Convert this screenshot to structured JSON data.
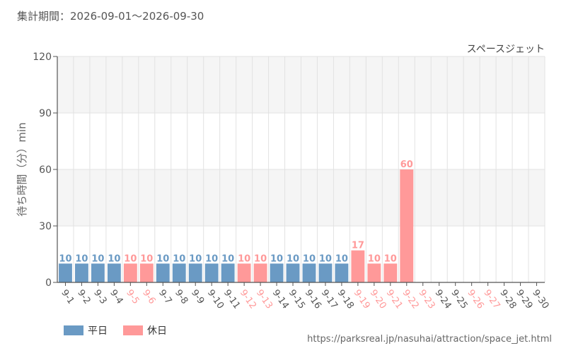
{
  "header": {
    "period": "集計期間：2026-09-01〜2026-09-30"
  },
  "legend": {
    "weekday": "平日",
    "holiday": "休日"
  },
  "source_url": "https://parksreal.jp/nasuhai/attraction/space_jet.html",
  "colors": {
    "weekday": "#6a9ac4",
    "holiday": "#ff9999",
    "band": "#f5f5f5",
    "grid": "#e2e2e2",
    "axis": "#555555",
    "tick_text": "#555555"
  },
  "chart_data": {
    "type": "bar",
    "title": "スペースジェット",
    "ylabel": "待ち時間（分）min",
    "xlabel": "",
    "ylim": [
      0,
      120
    ],
    "yticks": [
      0,
      30,
      60,
      90,
      120
    ],
    "grid": true,
    "legend_position": "bottom-left",
    "categories": [
      "9-1",
      "9-2",
      "9-3",
      "9-4",
      "9-5",
      "9-6",
      "9-7",
      "9-8",
      "9-9",
      "9-10",
      "9-11",
      "9-12",
      "9-13",
      "9-14",
      "9-15",
      "9-16",
      "9-17",
      "9-18",
      "9-19",
      "9-20",
      "9-21",
      "9-22",
      "9-23",
      "9-24",
      "9-25",
      "9-26",
      "9-27",
      "9-28",
      "9-29",
      "9-30"
    ],
    "values": [
      10,
      10,
      10,
      10,
      10,
      10,
      10,
      10,
      10,
      10,
      10,
      10,
      10,
      10,
      10,
      10,
      10,
      10,
      17,
      10,
      10,
      60,
      null,
      null,
      null,
      null,
      null,
      null,
      null,
      null
    ],
    "day_type": [
      "weekday",
      "weekday",
      "weekday",
      "weekday",
      "holiday",
      "holiday",
      "weekday",
      "weekday",
      "weekday",
      "weekday",
      "weekday",
      "holiday",
      "holiday",
      "weekday",
      "weekday",
      "weekday",
      "weekday",
      "weekday",
      "holiday",
      "holiday",
      "holiday",
      "holiday",
      "holiday",
      "weekday",
      "weekday",
      "holiday",
      "holiday",
      "weekday",
      "weekday",
      "weekday"
    ]
  }
}
